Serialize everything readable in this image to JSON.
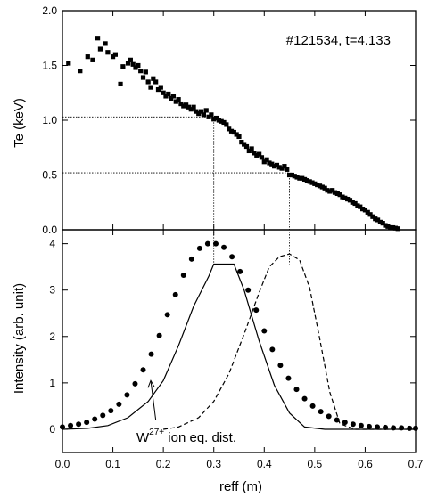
{
  "chart_data": [
    {
      "type": "scatter",
      "annotation": "#121534, t=4.133",
      "ylabel": "Te (keV)",
      "xlim": [
        0.0,
        0.7
      ],
      "ylim": [
        0.0,
        2.0
      ],
      "yticks": [
        "0.0",
        "0.5",
        "1.0",
        "1.5",
        "2.0"
      ],
      "series": [
        {
          "marker": "square",
          "x": [
            0.012,
            0.035,
            0.05,
            0.06,
            0.07,
            0.075,
            0.085,
            0.09,
            0.1,
            0.105,
            0.115,
            0.12,
            0.13,
            0.135,
            0.14,
            0.145,
            0.15,
            0.155,
            0.16,
            0.165,
            0.17,
            0.175,
            0.18,
            0.185,
            0.19,
            0.195,
            0.2,
            0.205,
            0.21,
            0.215,
            0.22,
            0.225,
            0.23,
            0.235,
            0.24,
            0.245,
            0.25,
            0.255,
            0.26,
            0.265,
            0.27,
            0.275,
            0.28,
            0.285,
            0.29,
            0.295,
            0.3,
            0.305,
            0.31,
            0.315,
            0.32,
            0.325,
            0.33,
            0.335,
            0.34,
            0.345,
            0.35,
            0.355,
            0.36,
            0.365,
            0.37,
            0.375,
            0.38,
            0.385,
            0.39,
            0.395,
            0.4,
            0.405,
            0.41,
            0.415,
            0.42,
            0.425,
            0.43,
            0.435,
            0.44,
            0.445,
            0.45,
            0.455,
            0.46,
            0.465,
            0.47,
            0.475,
            0.48,
            0.485,
            0.49,
            0.495,
            0.5,
            0.505,
            0.51,
            0.515,
            0.52,
            0.525,
            0.53,
            0.535,
            0.54,
            0.545,
            0.55,
            0.555,
            0.56,
            0.565,
            0.57,
            0.575,
            0.58,
            0.585,
            0.59,
            0.595,
            0.6,
            0.605,
            0.61,
            0.615,
            0.62,
            0.625,
            0.63,
            0.635,
            0.64,
            0.645,
            0.65,
            0.655,
            0.66,
            0.665
          ],
          "y": [
            1.52,
            1.45,
            1.58,
            1.55,
            1.75,
            1.65,
            1.7,
            1.62,
            1.58,
            1.6,
            1.33,
            1.49,
            1.52,
            1.55,
            1.51,
            1.48,
            1.5,
            1.45,
            1.39,
            1.44,
            1.35,
            1.3,
            1.38,
            1.35,
            1.28,
            1.3,
            1.25,
            1.22,
            1.24,
            1.2,
            1.22,
            1.17,
            1.19,
            1.15,
            1.13,
            1.14,
            1.12,
            1.1,
            1.12,
            1.08,
            1.06,
            1.08,
            1.05,
            1.09,
            1.03,
            1.05,
            1.01,
            1.02,
            1.0,
            0.99,
            0.98,
            0.96,
            0.92,
            0.9,
            0.89,
            0.87,
            0.85,
            0.8,
            0.78,
            0.76,
            0.72,
            0.74,
            0.7,
            0.68,
            0.69,
            0.66,
            0.62,
            0.64,
            0.61,
            0.6,
            0.58,
            0.59,
            0.57,
            0.56,
            0.58,
            0.55,
            0.5,
            0.5,
            0.49,
            0.48,
            0.47,
            0.47,
            0.46,
            0.45,
            0.44,
            0.43,
            0.42,
            0.41,
            0.4,
            0.39,
            0.38,
            0.36,
            0.35,
            0.36,
            0.34,
            0.33,
            0.32,
            0.3,
            0.29,
            0.28,
            0.27,
            0.25,
            0.24,
            0.22,
            0.21,
            0.19,
            0.18,
            0.16,
            0.14,
            0.12,
            0.1,
            0.09,
            0.07,
            0.06,
            0.04,
            0.03,
            0.02,
            0.02,
            0.015,
            0.01
          ]
        }
      ],
      "reference_lines": [
        {
          "x": 0.3,
          "y": 1.03
        },
        {
          "x": 0.45,
          "y": 0.52
        }
      ]
    },
    {
      "type": "line",
      "xlabel": "reff (m)",
      "ylabel": "Intensity (arb. unit)",
      "xlim": [
        0.0,
        0.7
      ],
      "ylim": [
        -0.5,
        4.3
      ],
      "xticks": [
        "0.0",
        "0.1",
        "0.2",
        "0.3",
        "0.4",
        "0.5",
        "0.6",
        "0.7"
      ],
      "yticks": [
        "0",
        "1",
        "2",
        "3",
        "4"
      ],
      "annotation_base": "W",
      "annotation_sup": "27+",
      "annotation_rest": " ion eq. dist.",
      "series": [
        {
          "style": "solid",
          "x": [
            0.0,
            0.05,
            0.09,
            0.13,
            0.17,
            0.2,
            0.23,
            0.26,
            0.29,
            0.3,
            0.34,
            0.36,
            0.39,
            0.42,
            0.45,
            0.48,
            0.52,
            0.6,
            0.7
          ],
          "y": [
            0.0,
            0.02,
            0.08,
            0.25,
            0.6,
            1.05,
            1.8,
            2.65,
            3.3,
            3.56,
            3.56,
            3.0,
            1.9,
            0.95,
            0.35,
            0.05,
            0.0,
            0.0,
            0.0
          ]
        },
        {
          "style": "dashed",
          "x": [
            0.2,
            0.23,
            0.27,
            0.3,
            0.33,
            0.36,
            0.39,
            0.41,
            0.43,
            0.45,
            0.47,
            0.49,
            0.51,
            0.53,
            0.55,
            0.58,
            0.65,
            0.7
          ],
          "y": [
            0.0,
            0.05,
            0.25,
            0.6,
            1.2,
            2.05,
            2.95,
            3.5,
            3.72,
            3.78,
            3.65,
            3.05,
            1.95,
            0.8,
            0.12,
            0.0,
            0.0,
            0.0
          ]
        },
        {
          "style": "dots",
          "x": [
            0.0,
            0.016,
            0.032,
            0.048,
            0.064,
            0.08,
            0.096,
            0.112,
            0.128,
            0.144,
            0.16,
            0.176,
            0.192,
            0.208,
            0.224,
            0.24,
            0.256,
            0.272,
            0.288,
            0.304,
            0.32,
            0.336,
            0.352,
            0.368,
            0.384,
            0.4,
            0.416,
            0.432,
            0.448,
            0.464,
            0.48,
            0.496,
            0.512,
            0.528,
            0.544,
            0.56,
            0.576,
            0.592,
            0.608,
            0.624,
            0.64,
            0.656,
            0.672,
            0.688,
            0.7
          ],
          "y": [
            0.05,
            0.08,
            0.11,
            0.15,
            0.22,
            0.3,
            0.4,
            0.54,
            0.74,
            0.98,
            1.28,
            1.62,
            2.02,
            2.47,
            2.9,
            3.32,
            3.67,
            3.9,
            4.0,
            4.0,
            3.92,
            3.72,
            3.4,
            3.0,
            2.57,
            2.12,
            1.72,
            1.38,
            1.1,
            0.86,
            0.66,
            0.5,
            0.38,
            0.28,
            0.2,
            0.15,
            0.11,
            0.08,
            0.06,
            0.05,
            0.04,
            0.03,
            0.03,
            0.02,
            0.02
          ]
        }
      ]
    }
  ]
}
